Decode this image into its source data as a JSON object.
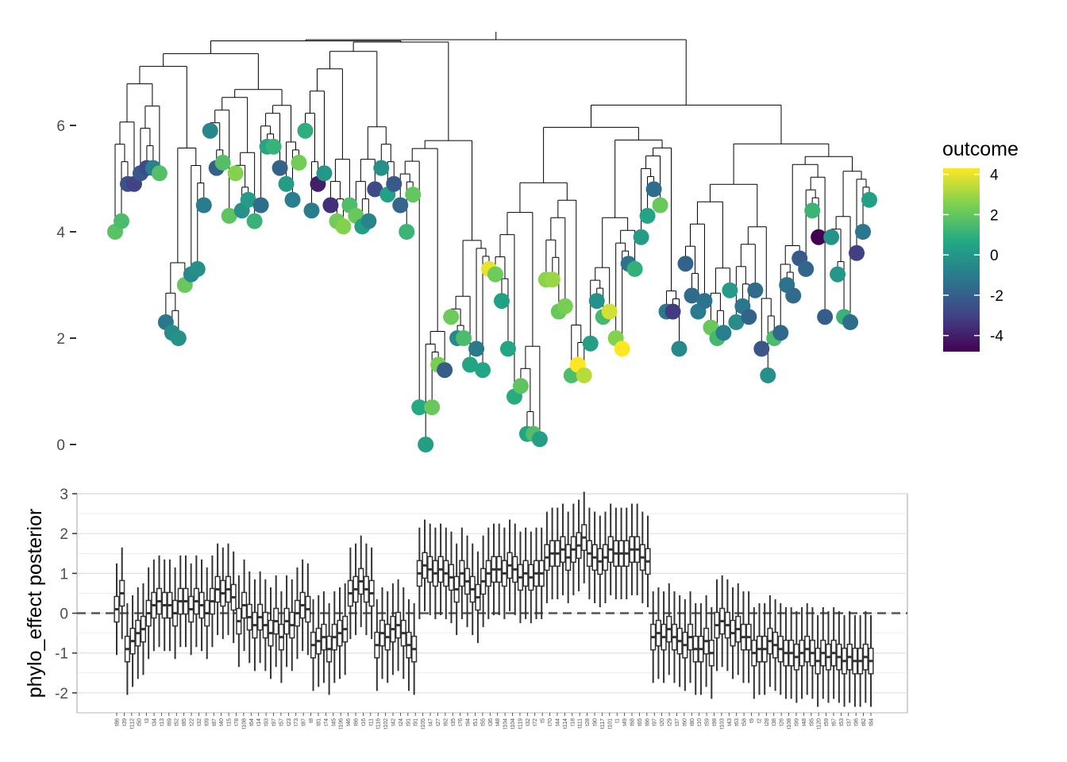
{
  "chart_data": [
    {
      "type": "scatter",
      "subtype": "phylogenetic-tree",
      "title": "",
      "xlabel": "",
      "ylabel": "",
      "ylim": [
        -0.35,
        7.35
      ],
      "yticks": [
        0,
        2,
        4,
        6
      ],
      "background": "blank",
      "grid": false,
      "color_scale": {
        "name": "outcome",
        "palette": "viridis",
        "limits": [
          -4.8,
          4.3
        ],
        "ticks": [
          4,
          2,
          0,
          -2,
          -4
        ],
        "stops": [
          "#440154",
          "#414487",
          "#2A788E",
          "#22A884",
          "#7AD151",
          "#FDE725"
        ]
      },
      "legend": {
        "title": "outcome",
        "placement": "right"
      },
      "tips": [
        {
          "y": 4.0,
          "v": 1.8
        },
        {
          "y": 4.2,
          "v": 1.5
        },
        {
          "y": 4.9,
          "v": -2.5
        },
        {
          "y": 4.9,
          "v": -3.0
        },
        {
          "y": 5.1,
          "v": -2.3
        },
        {
          "y": 5.2,
          "v": -2.7
        },
        {
          "y": 5.2,
          "v": -0.8
        },
        {
          "y": 5.1,
          "v": 1.7
        },
        {
          "y": 2.3,
          "v": -1.2
        },
        {
          "y": 2.1,
          "v": -0.4
        },
        {
          "y": 2.0,
          "v": -0.2
        },
        {
          "y": 3.0,
          "v": 2.1
        },
        {
          "y": 3.2,
          "v": -0.5
        },
        {
          "y": 3.3,
          "v": -0.3
        },
        {
          "y": 4.5,
          "v": -1.0
        },
        {
          "y": 5.9,
          "v": -0.6
        },
        {
          "y": 5.2,
          "v": -2.0
        },
        {
          "y": 5.3,
          "v": 1.7
        },
        {
          "y": 4.3,
          "v": 1.9
        },
        {
          "y": 5.1,
          "v": 2.6
        },
        {
          "y": 4.4,
          "v": -0.2
        },
        {
          "y": 4.6,
          "v": 0.2
        },
        {
          "y": 4.2,
          "v": 1.1
        },
        {
          "y": 4.5,
          "v": -1.5
        },
        {
          "y": 5.6,
          "v": 0.6
        },
        {
          "y": 5.6,
          "v": 1.1
        },
        {
          "y": 5.2,
          "v": -1.9
        },
        {
          "y": 4.9,
          "v": 0.2
        },
        {
          "y": 4.6,
          "v": -0.9
        },
        {
          "y": 5.3,
          "v": 2.3
        },
        {
          "y": 5.9,
          "v": 0.9
        },
        {
          "y": 4.4,
          "v": -1.0
        },
        {
          "y": 4.9,
          "v": -4.0
        },
        {
          "y": 5.1,
          "v": 0.0
        },
        {
          "y": 4.5,
          "v": -3.5
        },
        {
          "y": 4.2,
          "v": 2.3
        },
        {
          "y": 4.1,
          "v": 2.6
        },
        {
          "y": 4.5,
          "v": 1.6
        },
        {
          "y": 4.3,
          "v": 2.1
        },
        {
          "y": 4.1,
          "v": 0.3
        },
        {
          "y": 4.2,
          "v": -0.7
        },
        {
          "y": 4.8,
          "v": -2.7
        },
        {
          "y": 5.2,
          "v": -0.2
        },
        {
          "y": 4.7,
          "v": 0.4
        },
        {
          "y": 4.9,
          "v": -2.2
        },
        {
          "y": 4.5,
          "v": -1.8
        },
        {
          "y": 4.0,
          "v": 1.2
        },
        {
          "y": 4.7,
          "v": 2.0
        },
        {
          "y": 0.7,
          "v": 0.7
        },
        {
          "y": 0.0,
          "v": 0.3
        },
        {
          "y": 0.7,
          "v": 2.1
        },
        {
          "y": 1.5,
          "v": 2.4
        },
        {
          "y": 1.4,
          "v": -2.1
        },
        {
          "y": 2.4,
          "v": 2.2
        },
        {
          "y": 2.0,
          "v": -0.5
        },
        {
          "y": 2.0,
          "v": 1.5
        },
        {
          "y": 1.5,
          "v": 0.5
        },
        {
          "y": 1.8,
          "v": -1.1
        },
        {
          "y": 1.4,
          "v": 0.6
        },
        {
          "y": 3.3,
          "v": 4.0
        },
        {
          "y": 3.2,
          "v": 2.2
        },
        {
          "y": 2.7,
          "v": 0.4
        },
        {
          "y": 1.8,
          "v": 0.6
        },
        {
          "y": 0.9,
          "v": 0.8
        },
        {
          "y": 1.1,
          "v": 1.9
        },
        {
          "y": 0.2,
          "v": 0.5
        },
        {
          "y": 0.2,
          "v": 1.6
        },
        {
          "y": 0.1,
          "v": 0.3
        },
        {
          "y": 3.1,
          "v": 2.7
        },
        {
          "y": 3.1,
          "v": 2.9
        },
        {
          "y": 2.5,
          "v": 2.1
        },
        {
          "y": 2.6,
          "v": 2.4
        },
        {
          "y": 1.3,
          "v": 1.6
        },
        {
          "y": 1.5,
          "v": 4.3
        },
        {
          "y": 1.3,
          "v": 3.3
        },
        {
          "y": 1.9,
          "v": 0.3
        },
        {
          "y": 2.7,
          "v": -0.2
        },
        {
          "y": 2.4,
          "v": 1.4
        },
        {
          "y": 2.5,
          "v": 3.7
        },
        {
          "y": 2.0,
          "v": 2.6
        },
        {
          "y": 1.8,
          "v": 4.3
        },
        {
          "y": 3.4,
          "v": -1.3
        },
        {
          "y": 3.3,
          "v": 1.0
        },
        {
          "y": 3.9,
          "v": 0.2
        },
        {
          "y": 4.3,
          "v": 0.5
        },
        {
          "y": 4.8,
          "v": -1.5
        },
        {
          "y": 4.5,
          "v": 2.1
        },
        {
          "y": 2.5,
          "v": -1.1
        },
        {
          "y": 2.5,
          "v": -3.2
        },
        {
          "y": 1.8,
          "v": -0.5
        },
        {
          "y": 3.4,
          "v": -1.9
        },
        {
          "y": 2.8,
          "v": -1.6
        },
        {
          "y": 2.5,
          "v": -1.0
        },
        {
          "y": 2.7,
          "v": -1.3
        },
        {
          "y": 2.2,
          "v": 2.1
        },
        {
          "y": 2.0,
          "v": 1.4
        },
        {
          "y": 2.1,
          "v": -0.9
        },
        {
          "y": 2.9,
          "v": 0.2
        },
        {
          "y": 2.3,
          "v": -0.4
        },
        {
          "y": 2.6,
          "v": -1.2
        },
        {
          "y": 2.4,
          "v": -1.9
        },
        {
          "y": 2.9,
          "v": -1.6
        },
        {
          "y": 1.8,
          "v": -2.4
        },
        {
          "y": 1.3,
          "v": -0.3
        },
        {
          "y": 2.0,
          "v": 1.5
        },
        {
          "y": 2.1,
          "v": -1.7
        },
        {
          "y": 3.0,
          "v": -1.3
        },
        {
          "y": 2.8,
          "v": -1.6
        },
        {
          "y": 3.5,
          "v": -2.2
        },
        {
          "y": 3.3,
          "v": -1.8
        },
        {
          "y": 4.4,
          "v": 1.2
        },
        {
          "y": 3.9,
          "v": -4.8
        },
        {
          "y": 2.4,
          "v": -2.1
        },
        {
          "y": 3.9,
          "v": -0.1
        },
        {
          "y": 3.2,
          "v": 0.0
        },
        {
          "y": 2.4,
          "v": 1.1
        },
        {
          "y": 2.3,
          "v": -1.5
        },
        {
          "y": 3.6,
          "v": -3.1
        },
        {
          "y": 4.0,
          "v": -1.2
        },
        {
          "y": 4.6,
          "v": 0.3
        }
      ]
    },
    {
      "type": "box",
      "title": "",
      "xlabel": "",
      "ylabel": "phylo_effect posterior",
      "ylim": [
        -2.5,
        3.0
      ],
      "yticks": [
        -2,
        -1,
        0,
        1,
        2,
        3
      ],
      "reference_line": {
        "y": 0,
        "style": "dashed"
      },
      "grid": true,
      "box_medians": [
        0.1,
        0.5,
        -0.9,
        -0.7,
        -0.5,
        -0.4,
        0.0,
        0.2,
        0.3,
        0.2,
        0.2,
        0.0,
        0.3,
        0.3,
        0.1,
        0.3,
        0.2,
        0.0,
        0.3,
        0.6,
        0.5,
        0.6,
        0.4,
        -0.2,
        0.2,
        -0.1,
        -0.3,
        -0.1,
        -0.3,
        -0.5,
        -0.2,
        -0.6,
        -0.2,
        -0.3,
        0.0,
        0.2,
        0.1,
        -0.8,
        -0.7,
        -0.6,
        -0.9,
        -0.6,
        -0.5,
        -0.4,
        0.5,
        0.6,
        0.8,
        0.6,
        0.5,
        -0.8,
        -0.5,
        -0.6,
        -0.4,
        -0.3,
        -0.5,
        -0.8,
        -0.9,
        1.0,
        1.2,
        1.1,
        1.0,
        1.1,
        1.0,
        0.9,
        0.6,
        1.0,
        0.8,
        0.6,
        0.4,
        0.8,
        1.0,
        1.1,
        1.1,
        1.0,
        1.2,
        1.1,
        0.9,
        1.0,
        0.9,
        1.0,
        1.0,
        1.4,
        1.5,
        1.5,
        1.6,
        1.4,
        1.6,
        1.7,
        1.9,
        1.5,
        1.4,
        1.3,
        1.4,
        1.6,
        1.5,
        1.5,
        1.5,
        1.6,
        1.6,
        1.4,
        1.3,
        -0.6,
        -0.5,
        -0.6,
        -0.4,
        -0.6,
        -0.7,
        -0.8,
        -0.6,
        -0.9,
        -0.9,
        -0.7,
        -1.0,
        -0.3,
        -0.2,
        -0.3,
        -0.5,
        -0.4,
        -0.6,
        -0.6,
        -1.0,
        -0.9,
        -0.9,
        -0.7,
        -0.8,
        -0.9,
        -1.0,
        -1.0,
        -1.1,
        -1.0,
        -0.9,
        -1.0,
        -1.2,
        -1.0,
        -1.1,
        -1.0,
        -1.1,
        -1.2,
        -1.1,
        -1.2,
        -1.2,
        -1.1,
        -1.2
      ],
      "x_tick_labels": [
        "t86",
        "t39",
        "t112",
        "t50",
        "t3",
        "t34",
        "t13",
        "t69",
        "t52",
        "t85",
        "t22",
        "t32",
        "t09",
        "t87",
        "t40",
        "t15",
        "t78",
        "t108",
        "t64",
        "t14",
        "t93",
        "t97",
        "t57",
        "t23",
        "t73",
        "t87",
        "t8",
        "t81",
        "t74",
        "t45",
        "t106",
        "t46",
        "t66",
        "t16",
        "t11",
        "t116",
        "t102",
        "t42",
        "t24",
        "t91",
        "t91",
        "t105",
        "t47",
        "t27",
        "t62",
        "t35",
        "t76",
        "t94",
        "t51",
        "t55",
        "t36",
        "t48",
        "t104",
        "t104",
        "t119",
        "t32",
        "t72",
        "t5",
        "t70",
        "t44",
        "t114",
        "t18",
        "t111",
        "t28",
        "t90",
        "t117",
        "t101",
        "t1",
        "t49",
        "t68",
        "t65",
        "t66",
        "t97",
        "t20",
        "t29",
        "t37",
        "t60",
        "t80",
        "t10",
        "t59",
        "t98",
        "t103",
        "t43",
        "t63",
        "t58",
        "t9",
        "t2",
        "t28",
        "t38",
        "t26",
        "t108",
        "t99",
        "t48",
        "t95",
        "t120",
        "t59",
        "t67",
        "t53",
        "t37",
        "t96",
        "t82",
        "t84"
      ]
    }
  ]
}
